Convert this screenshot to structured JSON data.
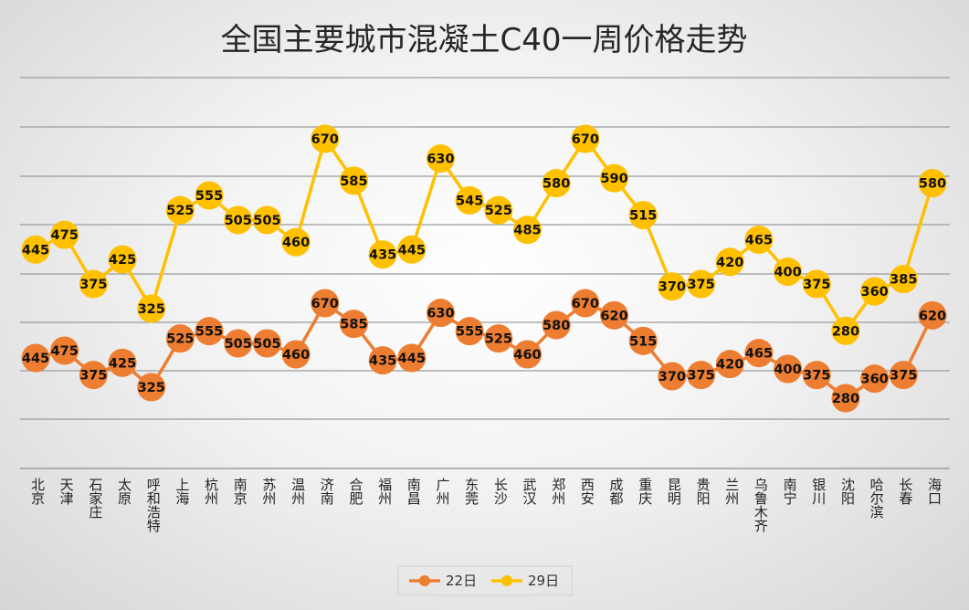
{
  "chart_data": {
    "type": "line",
    "title": "全国主要城市混凝土C40一周价格走势",
    "categories": [
      "北京",
      "天津",
      "石家庄",
      "太原",
      "呼和浩特",
      "上海",
      "杭州",
      "南京",
      "苏州",
      "温州",
      "济南",
      "合肥",
      "福州",
      "南昌",
      "广州",
      "东莞",
      "长沙",
      "武汉",
      "郑州",
      "西安",
      "成都",
      "重庆",
      "昆明",
      "贵阳",
      "兰州",
      "乌鲁木齐",
      "南宁",
      "银川",
      "沈阳",
      "哈尔滨",
      "长春",
      "海口"
    ],
    "series": [
      {
        "name": "22日",
        "color": "#ED7D31",
        "values": [
          445,
          475,
          375,
          425,
          325,
          525,
          555,
          505,
          505,
          460,
          670,
          585,
          435,
          445,
          630,
          555,
          525,
          460,
          580,
          670,
          620,
          515,
          370,
          375,
          420,
          465,
          400,
          375,
          280,
          360,
          375,
          620
        ]
      },
      {
        "name": "29日",
        "color": "#FFC000",
        "values": [
          445,
          475,
          375,
          425,
          325,
          525,
          555,
          505,
          505,
          460,
          670,
          585,
          435,
          445,
          630,
          545,
          525,
          485,
          580,
          670,
          590,
          515,
          370,
          375,
          420,
          465,
          400,
          375,
          280,
          360,
          385,
          580
        ]
      }
    ],
    "legend_position": "bottom",
    "grid": true
  }
}
